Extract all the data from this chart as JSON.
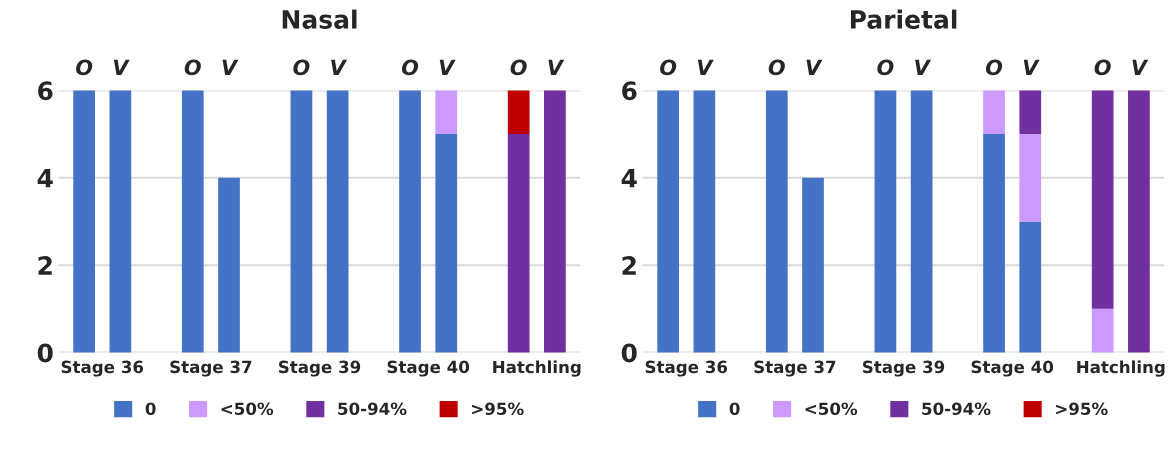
{
  "chart_data": [
    {
      "type": "bar",
      "title": "Nasal",
      "stacked": true,
      "grid": "y",
      "legend": "bottom",
      "categories": [
        "O",
        "V",
        "O",
        "V",
        "O",
        "V",
        "O",
        "V",
        "O",
        "V"
      ],
      "annotations": [
        "Stage 36",
        "Stage 37",
        "Stage 39",
        "Stage 40",
        "Hatchling"
      ],
      "ylim": [
        0,
        6
      ],
      "yticks": [
        0,
        2,
        4,
        6
      ],
      "series": [
        {
          "name": "0",
          "color": "#4472c4",
          "values": [
            6,
            6,
            6,
            4,
            6,
            6,
            6,
            5,
            0,
            0
          ]
        },
        {
          "name": "<50%",
          "color": "#cc99ff",
          "values": [
            0,
            0,
            0,
            0,
            0,
            0,
            0,
            1,
            0,
            0
          ]
        },
        {
          "name": "50-94%",
          "color": "#7030a0",
          "values": [
            0,
            0,
            0,
            0,
            0,
            0,
            0,
            0,
            5,
            6
          ]
        },
        {
          "name": ">95%",
          "color": "#c00000",
          "values": [
            0,
            0,
            0,
            0,
            0,
            0,
            0,
            0,
            1,
            0
          ]
        }
      ]
    },
    {
      "type": "bar",
      "title": "Parietal",
      "stacked": true,
      "grid": "y",
      "legend": "bottom",
      "categories": [
        "O",
        "V",
        "O",
        "V",
        "O",
        "V",
        "O",
        "V",
        "O",
        "V"
      ],
      "annotations": [
        "Stage 36",
        "Stage 37",
        "Stage 39",
        "Stage 40",
        "Hatchling"
      ],
      "ylim": [
        0,
        6
      ],
      "yticks": [
        0,
        2,
        4,
        6
      ],
      "series": [
        {
          "name": "0",
          "color": "#4472c4",
          "values": [
            6,
            6,
            6,
            4,
            6,
            6,
            5,
            3,
            0,
            0
          ]
        },
        {
          "name": "<50%",
          "color": "#cc99ff",
          "values": [
            0,
            0,
            0,
            0,
            0,
            0,
            1,
            2,
            1,
            0
          ]
        },
        {
          "name": "50-94%",
          "color": "#7030a0",
          "values": [
            0,
            0,
            0,
            0,
            0,
            0,
            0,
            1,
            5,
            6
          ]
        },
        {
          "name": ">95%",
          "color": "#c00000",
          "values": [
            0,
            0,
            0,
            0,
            0,
            0,
            0,
            0,
            0,
            0
          ]
        }
      ]
    }
  ]
}
